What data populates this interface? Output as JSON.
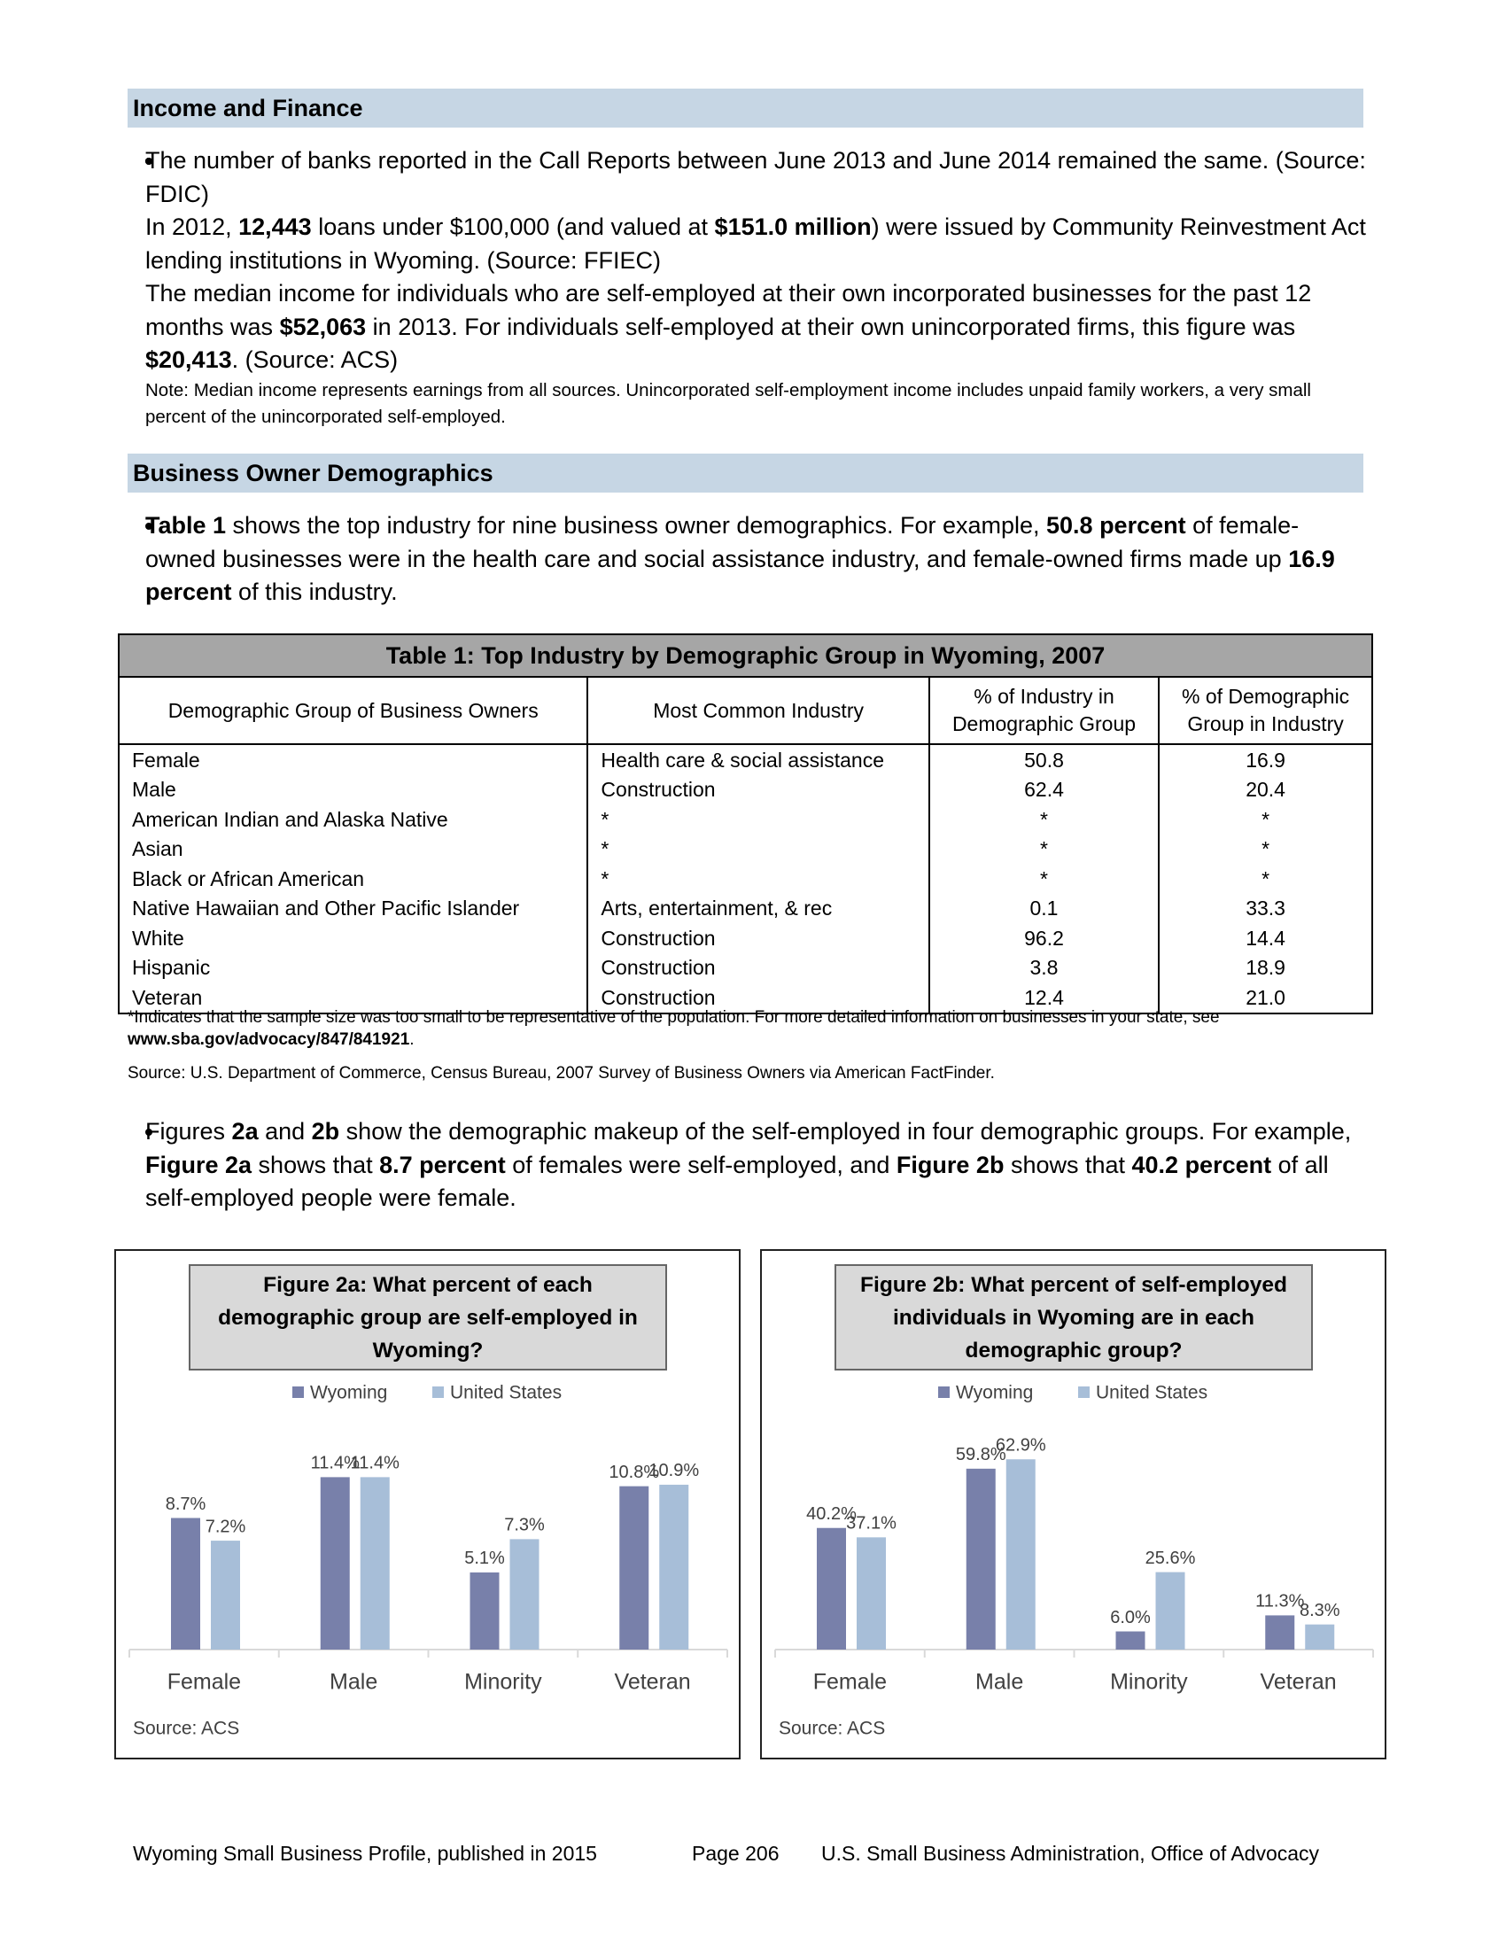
{
  "income_finance": {
    "heading": "Income and Finance",
    "bullets": [
      [
        "The number of banks reported in the Call Reports between June 2013 and June 2014 remained the same. (Source: FDIC)"
      ],
      [
        "In 2012, ",
        {
          "bold": "12,443"
        },
        " loans under $100,000 (and valued at ",
        {
          "bold": "$151.0 million"
        },
        ") were issued by Community Reinvestment Act lending institutions in Wyoming. (Source: FFIEC)"
      ],
      [
        "The median income for individuals who are self-employed at their own incorporated businesses for the past 12 months was ",
        {
          "bold": "$52,063"
        },
        " in 2013. For individuals self-employed at their own unincorporated firms, this figure was ",
        {
          "bold": "$20,413"
        },
        ".  (Source: ACS)"
      ]
    ],
    "note": "Note: Median income represents earnings from all sources. Unincorporated self-employment income includes unpaid family workers, a very small percent of the unincorporated self-employed."
  },
  "business_owner_demographics": {
    "heading": "Business Owner Demographics",
    "bullets": [
      [
        {
          "bold": "Table 1"
        },
        " shows the top industry for nine business owner demographics. For example, ",
        {
          "bold": "50.8 percent"
        },
        " of female-owned businesses were in the health care and social assistance industry, and female-owned firms made up ",
        {
          "bold": "16.9 percent"
        },
        " of this industry."
      ]
    ],
    "table": {
      "title": "Table 1: Top Industry by Demographic Group in Wyoming, 2007",
      "columns": [
        "Demographic Group of Business Owners",
        "Most Common Industry",
        "% of Industry in Demographic Group",
        "% of Demographic Group in Industry"
      ],
      "rows": [
        [
          "Female",
          "Health care & social assistance",
          "50.8",
          "16.9"
        ],
        [
          "Male",
          "Construction",
          "62.4",
          "20.4"
        ],
        [
          "American Indian and Alaska Native",
          "*",
          "*",
          "*"
        ],
        [
          "Asian",
          "*",
          "*",
          "*"
        ],
        [
          "Black or African American",
          "*",
          "*",
          "*"
        ],
        [
          "Native Hawaiian and Other Pacific Islander",
          "Arts, entertainment, & rec",
          "0.1",
          "33.3"
        ],
        [
          "White",
          "Construction",
          "96.2",
          "14.4"
        ],
        [
          "Hispanic",
          "Construction",
          "3.8",
          "18.9"
        ],
        [
          "Veteran",
          "Construction",
          "12.4",
          "21.0"
        ]
      ],
      "footnote": [
        "*Indicates that the sample size was too small to be representative of the population. For more detailed information on businesses in your state, see ",
        {
          "bold": "www.sba.gov/advocacy/847/841921"
        },
        "."
      ],
      "source": "Source: U.S. Department of Commerce, Census Bureau, 2007 Survey of Business Owners via American FactFinder."
    },
    "bullets_after_table": [
      [
        "Figures ",
        {
          "bold": "2a"
        },
        " and ",
        {
          "bold": "2b"
        },
        " show the demographic makeup of the self-employed in four demographic groups. For example, ",
        {
          "bold": "Figure 2a"
        },
        " shows that ",
        {
          "bold": "8.7 percent"
        },
        " of females were self-employed, and ",
        {
          "bold": "Figure 2b"
        },
        " shows that ",
        {
          "bold": "40.2 percent"
        },
        " of all self-employed people were female."
      ]
    ]
  },
  "chart_data": [
    {
      "type": "bar",
      "title": "Figure 2a: What percent of each demographic group are self-employed in Wyoming?",
      "categories": [
        "Female",
        "Male",
        "Minority",
        "Veteran"
      ],
      "series": [
        {
          "name": "Wyoming",
          "color": "#7880aa",
          "values": [
            8.7,
            11.4,
            5.1,
            10.8
          ],
          "value_labels": [
            "8.7%",
            "11.4%",
            "5.1%",
            "10.8%"
          ]
        },
        {
          "name": "United States",
          "color": "#a7bed8",
          "values": [
            7.2,
            11.4,
            7.3,
            10.9
          ],
          "value_labels": [
            "7.2%",
            "11.4%",
            "7.3%",
            "10.9%"
          ]
        }
      ],
      "ylim": [
        0,
        14
      ],
      "legend": "top",
      "source": "Source: ACS"
    },
    {
      "type": "bar",
      "title": "Figure 2b: What percent of self-employed individuals in Wyoming are in each demographic group?",
      "categories": [
        "Female",
        "Male",
        "Minority",
        "Veteran"
      ],
      "series": [
        {
          "name": "Wyoming",
          "color": "#7880aa",
          "values": [
            40.2,
            59.8,
            6.0,
            11.3
          ],
          "value_labels": [
            "40.2%",
            "59.8%",
            "6.0%",
            "11.3%"
          ]
        },
        {
          "name": "United States",
          "color": "#a7bed8",
          "values": [
            37.1,
            62.9,
            25.6,
            8.3
          ],
          "value_labels": [
            "37.1%",
            "62.9%",
            "25.6%",
            "8.3%"
          ]
        }
      ],
      "ylim": [
        0,
        70
      ],
      "legend": "top",
      "source": "Source: ACS"
    }
  ],
  "footer": {
    "left": "Wyoming Small Business Profile, published in 2015",
    "page": "Page 206",
    "right": "U.S. Small Business Administration, Office of Advocacy"
  }
}
